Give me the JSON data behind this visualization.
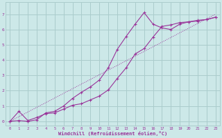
{
  "bg_color": "#cce8e8",
  "grid_color": "#aacccc",
  "line_color": "#993399",
  "xlabel": "Windchill (Refroidissement éolien,°C)",
  "xlim": [
    -0.5,
    23.5
  ],
  "ylim": [
    -0.3,
    7.8
  ],
  "xticks": [
    0,
    1,
    2,
    3,
    4,
    5,
    6,
    7,
    8,
    9,
    10,
    11,
    12,
    13,
    14,
    15,
    16,
    17,
    18,
    19,
    20,
    21,
    22,
    23
  ],
  "yticks": [
    0,
    1,
    2,
    3,
    4,
    5,
    6,
    7
  ],
  "ref_line_x": [
    0,
    23
  ],
  "ref_line_y": [
    0.0,
    7.0
  ],
  "curve_upper_x": [
    0,
    1,
    2,
    3,
    4,
    5,
    6,
    7,
    8,
    9,
    10,
    11,
    12,
    13,
    14,
    15,
    16,
    17,
    18,
    19,
    20,
    21,
    22,
    23
  ],
  "curve_upper_y": [
    0.0,
    0.05,
    0.0,
    0.1,
    0.55,
    0.65,
    1.0,
    1.5,
    1.9,
    2.25,
    2.7,
    3.5,
    4.7,
    5.55,
    6.35,
    7.1,
    6.35,
    6.1,
    6.0,
    6.35,
    6.5,
    6.55,
    6.65,
    6.8
  ],
  "curve_lower_x": [
    0,
    1,
    2,
    3,
    4,
    5,
    6,
    7,
    8,
    9,
    10,
    11,
    12,
    13,
    14,
    15,
    16,
    17,
    18,
    19,
    20,
    21,
    22,
    23
  ],
  "curve_lower_y": [
    0.0,
    0.65,
    0.05,
    0.25,
    0.5,
    0.55,
    0.8,
    1.05,
    1.15,
    1.4,
    1.65,
    2.05,
    2.8,
    3.5,
    4.4,
    4.75,
    5.5,
    6.2,
    6.3,
    6.45,
    6.5,
    6.6,
    6.65,
    6.8
  ]
}
